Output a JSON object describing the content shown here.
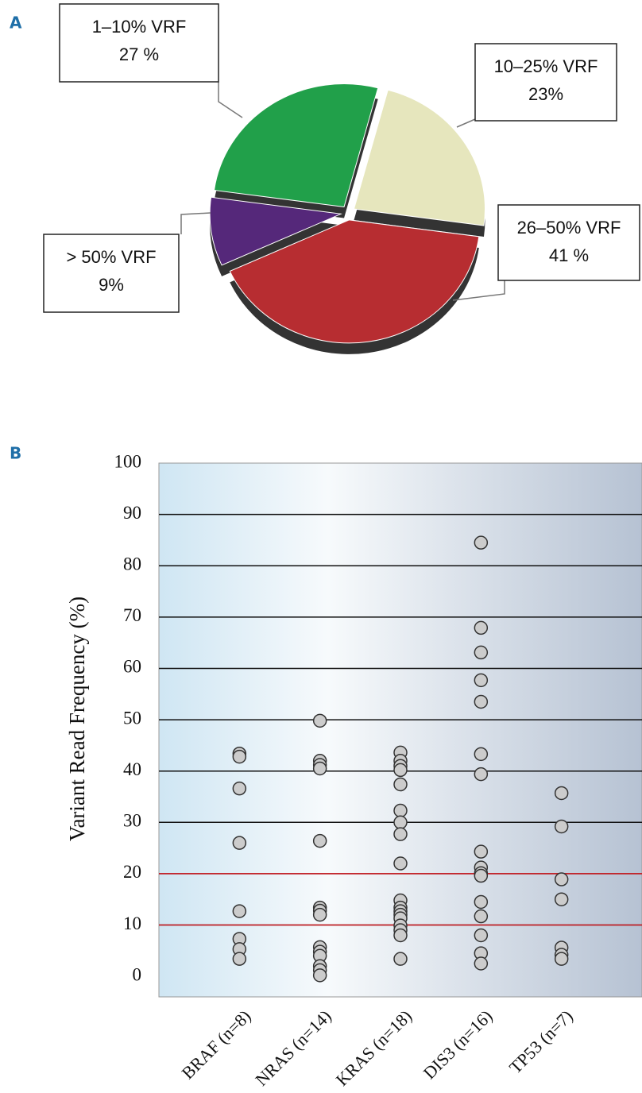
{
  "chart_data": [
    {
      "type": "pie",
      "label": "A",
      "categories": [
        "10–25% VRF",
        "26–50% VRF",
        "> 50% VRF",
        "1–10% VRF"
      ],
      "values": [
        23,
        41,
        9,
        27
      ],
      "value_labels": [
        "23%",
        "41 %",
        "9%",
        "27 %"
      ],
      "colors": [
        "#e6e6bd",
        "#b72d31",
        "#55287a",
        "#21a04a"
      ]
    },
    {
      "type": "strip",
      "label": "B",
      "y_label": "Variant Read Frequency (%)",
      "categories": [
        "BRAF (n=8)",
        "NRAS (n=14)",
        "KRAS (n=18)",
        "DIS3 (n=16)",
        "TP53 (n=7)"
      ],
      "values": [
        [
          43.4,
          42.8,
          36.6,
          26,
          12.7,
          7.3,
          5.3,
          3.4
        ],
        [
          49.8,
          42,
          41.2,
          40.5,
          26.4,
          13.4,
          12.8,
          12,
          5.7,
          4.8,
          4,
          2,
          1.2,
          0.2
        ],
        [
          43.6,
          42,
          41,
          40.2,
          37.4,
          32.3,
          30,
          27.7,
          22,
          14.8,
          13.4,
          12.7,
          12,
          11.3,
          9.9,
          9,
          8,
          3.4
        ],
        [
          84.5,
          67.9,
          63.1,
          57.7,
          53.5,
          43.3,
          39.4,
          24.3,
          21.2,
          20.1,
          19.6,
          14.5,
          11.7,
          8,
          4.5,
          2.5
        ],
        [
          35.7,
          29.2,
          18.9,
          15,
          5.6,
          4.2,
          3.4
        ]
      ],
      "marker_color": "#cccccc",
      "ylim": [
        -4,
        100
      ],
      "yticks": [
        0,
        10,
        20,
        30,
        40,
        50,
        60,
        70,
        80,
        90,
        100
      ],
      "grid": true,
      "reference_lines": {
        "values": [
          10,
          20
        ],
        "color": "#d62027"
      }
    }
  ]
}
